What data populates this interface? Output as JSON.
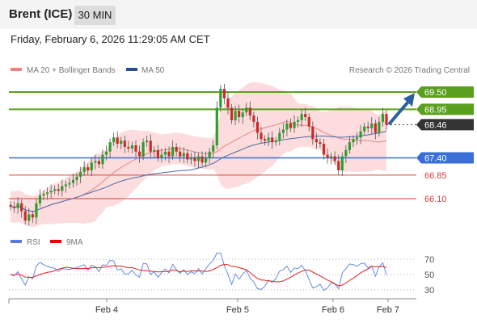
{
  "header": {
    "title": "Brent (ICE)",
    "timeframe": "30 MIN"
  },
  "date_line": "Friday, February 6, 2026 11:29:05 AM CET",
  "legend": {
    "bb_label": "MA 20 + Bollinger Bands",
    "ma50_label": "MA 50",
    "copyright": "Research © 2026 Trading Central"
  },
  "rsi_legend": {
    "rsi_label": "RSI",
    "ma_label": "9MA"
  },
  "colors": {
    "up_level": "#5aa01e",
    "down_level": "#3a6fd8",
    "support": "#d94040",
    "bands": "#fbd0d0",
    "ma20": "#e08a8a",
    "ma50": "#4a6aa8",
    "current": "#333333",
    "rsi": "#6a8ae0",
    "rsi_ma": "#e02020",
    "arrow": "#2a5ea8"
  },
  "chart_data": [
    {
      "type": "candlestick",
      "title": "",
      "x_tick_labels": [
        "Feb 4",
        "Feb 5",
        "Feb 6",
        "Feb 7"
      ],
      "levels": [
        {
          "label": "69.50",
          "value": 69.5,
          "kind": "resistance"
        },
        {
          "label": "68.95",
          "value": 68.95,
          "kind": "resistance"
        },
        {
          "label": "68.46",
          "value": 68.46,
          "kind": "current"
        },
        {
          "label": "67.40",
          "value": 67.4,
          "kind": "pivot"
        },
        {
          "label": "66.85",
          "value": 66.85,
          "kind": "support"
        },
        {
          "label": "66.10",
          "value": 66.1,
          "kind": "support"
        }
      ],
      "trend": "bullish",
      "series_close": [
        65.85,
        65.8,
        65.95,
        65.7,
        65.4,
        65.6,
        65.5,
        65.95,
        66.2,
        66.25,
        66.3,
        66.35,
        66.4,
        66.35,
        66.5,
        66.55,
        66.6,
        66.7,
        66.8,
        66.95,
        67.1,
        67.0,
        67.25,
        67.3,
        67.2,
        67.5,
        67.6,
        67.9,
        68.05,
        67.85,
        67.95,
        67.75,
        67.7,
        67.8,
        67.6,
        67.45,
        67.9,
        67.95,
        67.6,
        67.65,
        67.4,
        67.5,
        67.6,
        67.45,
        67.75,
        67.6,
        67.45,
        67.55,
        67.35,
        67.4,
        67.3,
        67.45,
        67.25,
        67.4,
        67.6,
        67.8,
        69.0,
        69.6,
        69.3,
        69.0,
        68.6,
        68.9,
        68.7,
        68.85,
        69.0,
        68.75,
        68.55,
        68.2,
        68.0,
        67.95,
        68.05,
        67.9,
        67.95,
        68.2,
        68.3,
        68.5,
        68.35,
        68.55,
        68.6,
        68.8,
        68.7,
        68.4,
        68.0,
        67.9,
        67.85,
        67.5,
        67.4,
        67.45,
        67.3,
        67.0,
        67.45,
        67.65,
        67.9,
        68.0,
        68.05,
        68.25,
        68.4,
        68.35,
        68.5,
        68.2,
        68.55,
        68.8,
        68.46
      ],
      "rsi": {
        "levels": [
          70,
          50,
          30
        ],
        "current_state": "above 50"
      }
    }
  ]
}
